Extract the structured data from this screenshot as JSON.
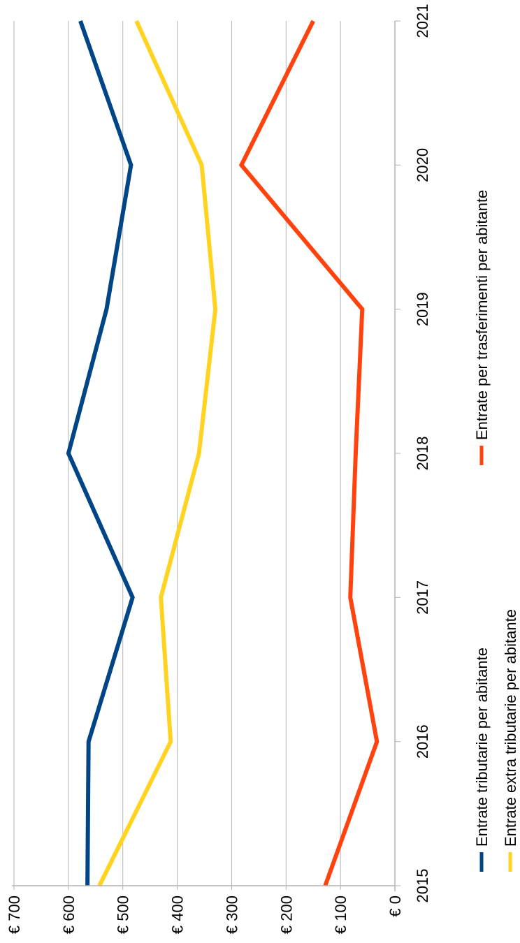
{
  "chart_data": {
    "type": "line",
    "orientation": "rotated-90-ccw",
    "x": [
      "2015",
      "2016",
      "2017",
      "2018",
      "2019",
      "2020",
      "2021"
    ],
    "series": [
      {
        "name": "Entrate tributarie per abitante",
        "color": "#004586",
        "values": [
          565,
          563,
          482,
          600,
          530,
          485,
          578
        ]
      },
      {
        "name": "Entrate extra tributarie per abitante",
        "color": "#ffd320",
        "values": [
          543,
          412,
          430,
          360,
          330,
          355,
          475
        ]
      },
      {
        "name": "Entrate per trasferimenti per abitante",
        "color": "#ff420e",
        "values": [
          128,
          33,
          82,
          72,
          60,
          282,
          150
        ]
      }
    ],
    "yticks": [
      "€ 0",
      "€ 100",
      "€ 200",
      "€ 300",
      "€ 400",
      "€ 500",
      "€ 600",
      "€ 700"
    ],
    "ylim": [
      0,
      700
    ],
    "grid": true,
    "legend_position": "bottom"
  }
}
